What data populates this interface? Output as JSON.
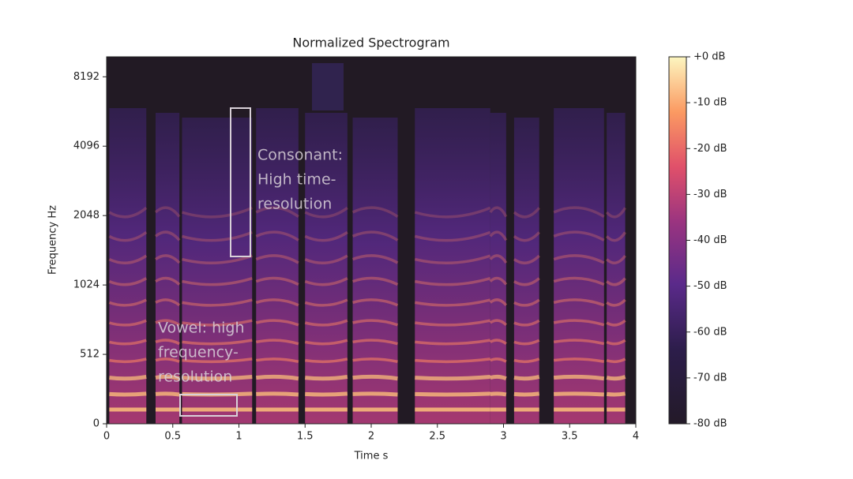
{
  "chart_data": {
    "type": "spectrogram",
    "title": "Normalized Spectrogram",
    "x_label": "Time s",
    "y_label": "Frequency Hz",
    "xlim": [
      0,
      4
    ],
    "xticks": [
      0,
      0.5,
      1,
      1.5,
      2,
      2.5,
      3,
      3.5,
      4
    ],
    "ylim": [
      0,
      10000
    ],
    "yscale": "symlog",
    "linthresh": 512,
    "log_base": 2,
    "yticks": [
      0,
      512,
      1024,
      2048,
      4096,
      8192
    ],
    "colormap": "magma",
    "clim": [
      -80,
      0
    ],
    "cticks": [
      {
        "value": 0,
        "label": "+0 dB"
      },
      {
        "value": -10,
        "label": "-10 dB"
      },
      {
        "value": -20,
        "label": "-20 dB"
      },
      {
        "value": -30,
        "label": "-30 dB"
      },
      {
        "value": -40,
        "label": "-40 dB"
      },
      {
        "value": -50,
        "label": "-50 dB"
      },
      {
        "value": -60,
        "label": "-60 dB"
      },
      {
        "value": -70,
        "label": "-70 dB"
      },
      {
        "value": -80,
        "label": "-80 dB"
      }
    ],
    "annotations": [
      {
        "lines": [
          "Consonant:",
          "High time-",
          "resolution"
        ]
      },
      {
        "lines": [
          "Vowel: high",
          "frequency-",
          "resolution"
        ]
      }
    ]
  }
}
